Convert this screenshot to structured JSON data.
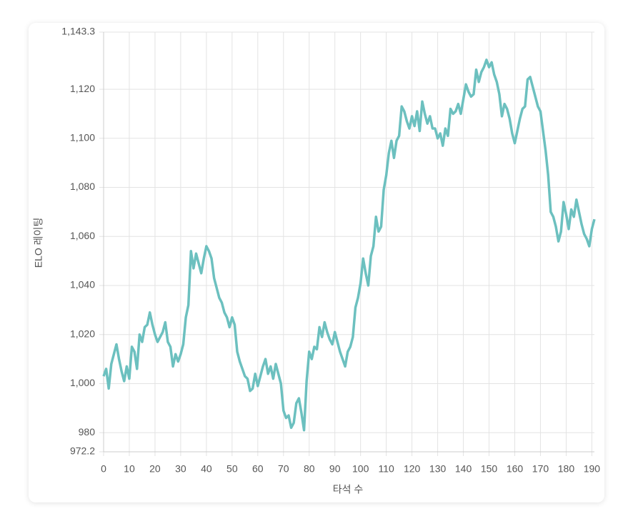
{
  "chart_data": {
    "type": "line",
    "x_label": "타석 수",
    "y_label": "ELO 레이팅",
    "xlim": [
      0,
      191
    ],
    "xticks": [
      0,
      10,
      20,
      30,
      40,
      50,
      60,
      70,
      80,
      90,
      100,
      110,
      120,
      130,
      140,
      150,
      160,
      170,
      180,
      190
    ],
    "ylim": [
      972.2,
      1143.3
    ],
    "yticks": [
      972.2,
      980,
      {
        "value": 1000,
        "label": "1,000"
      },
      {
        "value": 1020,
        "label": "1,020"
      },
      {
        "value": 1040,
        "label": "1,040"
      },
      {
        "value": 1060,
        "label": "1,060"
      },
      {
        "value": 1080,
        "label": "1,080"
      },
      {
        "value": 1100,
        "label": "1,100"
      },
      {
        "value": 1120,
        "label": "1,120"
      },
      {
        "value": 1143.3,
        "label": "1,143.3"
      }
    ],
    "grid": true,
    "x": [
      0,
      1,
      2,
      3,
      4,
      5,
      6,
      7,
      8,
      9,
      10,
      11,
      12,
      13,
      14,
      15,
      16,
      17,
      18,
      19,
      20,
      21,
      22,
      23,
      24,
      25,
      26,
      27,
      28,
      29,
      30,
      31,
      32,
      33,
      34,
      35,
      36,
      37,
      38,
      39,
      40,
      41,
      42,
      43,
      44,
      45,
      46,
      47,
      48,
      49,
      50,
      51,
      52,
      53,
      54,
      55,
      56,
      57,
      58,
      59,
      60,
      61,
      62,
      63,
      64,
      65,
      66,
      67,
      68,
      69,
      70,
      71,
      72,
      73,
      74,
      75,
      76,
      77,
      78,
      79,
      80,
      81,
      82,
      83,
      84,
      85,
      86,
      87,
      88,
      89,
      90,
      91,
      92,
      93,
      94,
      95,
      96,
      97,
      98,
      99,
      100,
      101,
      102,
      103,
      104,
      105,
      106,
      107,
      108,
      109,
      110,
      111,
      112,
      113,
      114,
      115,
      116,
      117,
      118,
      119,
      120,
      121,
      122,
      123,
      124,
      125,
      126,
      127,
      128,
      129,
      130,
      131,
      132,
      133,
      134,
      135,
      136,
      137,
      138,
      139,
      140,
      141,
      142,
      143,
      144,
      145,
      146,
      147,
      148,
      149,
      150,
      151,
      152,
      153,
      154,
      155,
      156,
      157,
      158,
      159,
      160,
      161,
      162,
      163,
      164,
      165,
      166,
      167,
      168,
      169,
      170,
      171,
      172,
      173,
      174,
      175,
      176,
      177,
      178,
      179,
      180,
      181,
      182,
      183,
      184,
      185,
      186,
      187,
      188,
      189,
      190,
      191
    ],
    "series": [
      {
        "color": "#6cc0bf",
        "values": [
          1003,
          1006,
          998,
          1008,
          1012,
          1016,
          1010,
          1005,
          1001,
          1007,
          1002,
          1015,
          1013,
          1006,
          1020,
          1017,
          1023,
          1024,
          1029,
          1024,
          1020,
          1017,
          1019,
          1021,
          1025,
          1017,
          1015,
          1007,
          1012,
          1009,
          1012,
          1016,
          1027,
          1032,
          1054,
          1047,
          1053,
          1049,
          1045,
          1051,
          1056,
          1054,
          1051,
          1043,
          1039,
          1035,
          1033,
          1029,
          1027,
          1023,
          1027,
          1024,
          1013,
          1009,
          1006,
          1003,
          1002,
          997,
          998,
          1004,
          999,
          1003,
          1007,
          1010,
          1004,
          1007,
          1002,
          1008,
          1004,
          1000,
          989,
          986,
          987,
          982,
          984,
          992,
          994,
          988,
          981,
          1001,
          1013,
          1010,
          1015,
          1014,
          1023,
          1019,
          1025,
          1021,
          1018,
          1016,
          1021,
          1017,
          1013,
          1010,
          1007,
          1013,
          1015,
          1019,
          1031,
          1035,
          1041,
          1051,
          1045,
          1040,
          1052,
          1056,
          1068,
          1062,
          1064,
          1079,
          1085,
          1094,
          1099,
          1092,
          1099,
          1101,
          1113,
          1111,
          1107,
          1104,
          1109,
          1105,
          1111,
          1103,
          1115,
          1110,
          1106,
          1109,
          1104,
          1104,
          1100,
          1102,
          1097,
          1104,
          1101,
          1112,
          1110,
          1111,
          1114,
          1110,
          1116,
          1122,
          1119,
          1117,
          1118,
          1128,
          1123,
          1127,
          1129,
          1132,
          1129,
          1131,
          1126,
          1123,
          1118,
          1109,
          1114,
          1112,
          1108,
          1102,
          1098,
          1103,
          1108,
          1112,
          1113,
          1124,
          1125,
          1121,
          1117,
          1113,
          1111,
          1103,
          1095,
          1085,
          1070,
          1068,
          1064,
          1058,
          1062,
          1074,
          1069,
          1063,
          1071,
          1068,
          1075,
          1070,
          1065,
          1061,
          1059,
          1056,
          1063,
          1067
        ]
      }
    ]
  }
}
